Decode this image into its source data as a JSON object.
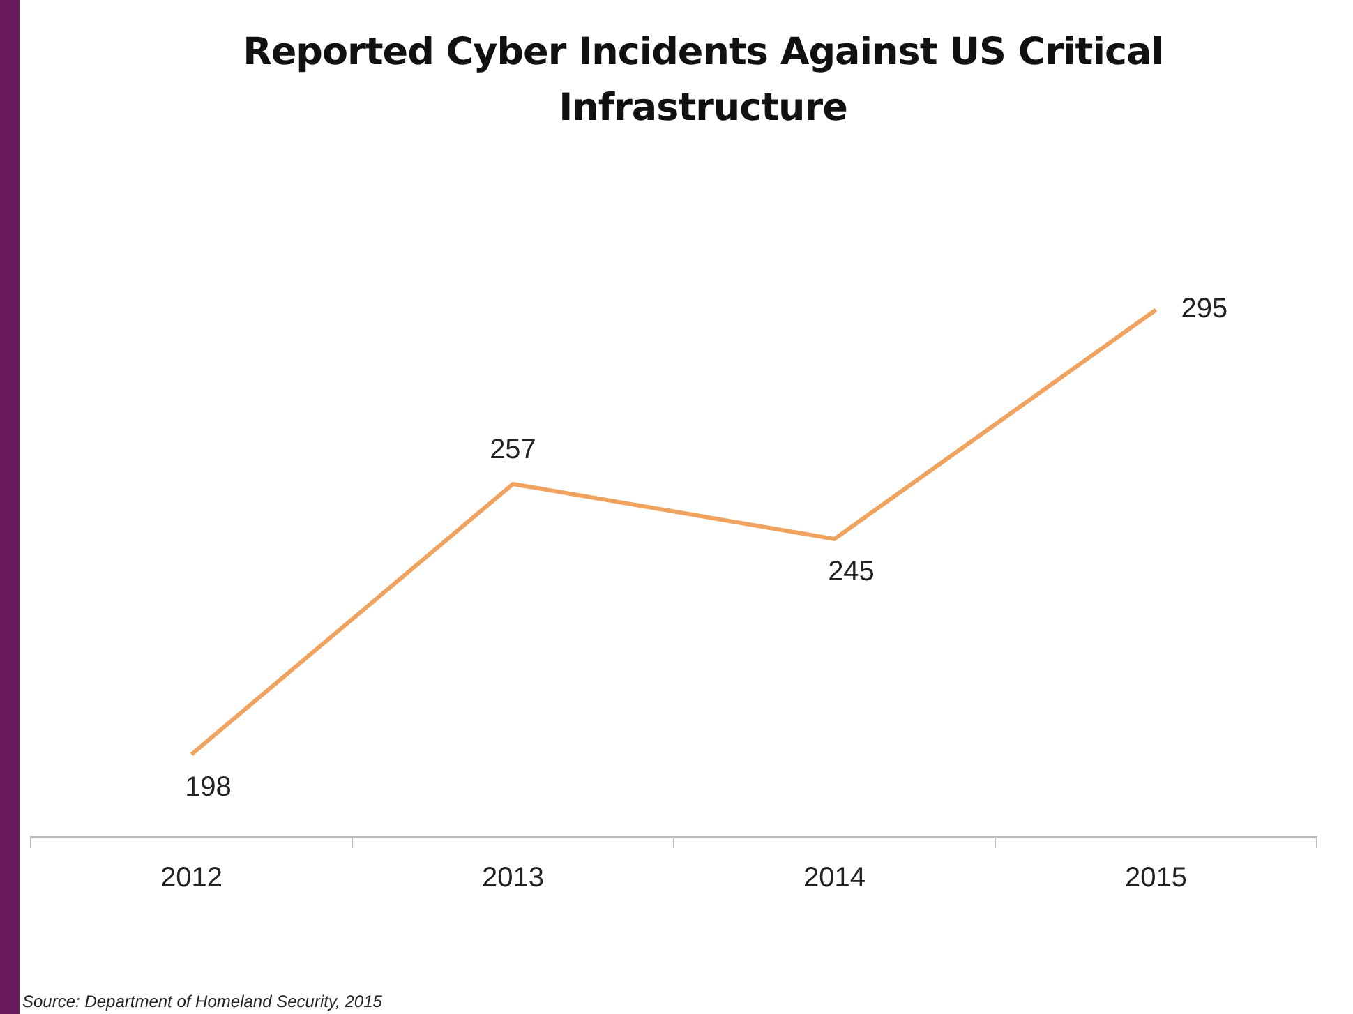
{
  "chart_data": {
    "type": "line",
    "title": "Reported Cyber Incidents Against US Critical Infrastructure",
    "categories": [
      "2012",
      "2013",
      "2014",
      "2015"
    ],
    "series": [
      {
        "color": "#f0a35e",
        "values": [
          198,
          257,
          245,
          295
        ]
      }
    ],
    "data_labels": true,
    "grid": false,
    "legend": false,
    "marker": "none",
    "tick_labels": "x",
    "annotations": [
      "Source: Department of Homeland Security, 2015"
    ]
  }
}
